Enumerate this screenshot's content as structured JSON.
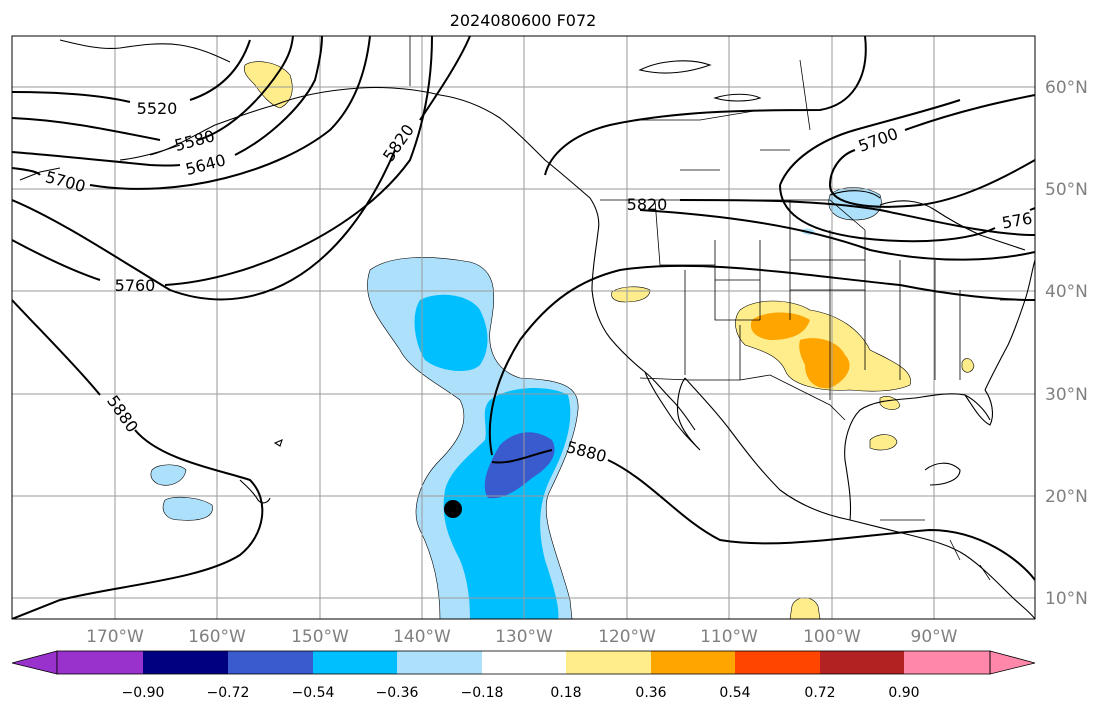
{
  "title": "2024080600 F072",
  "colors": {
    "lt_m090": "#9932CC",
    "m090_m072": "#000080",
    "m072_m054": "#3A5BCD",
    "m054_m036": "#00BFFF",
    "m036_m018": "#ADE0FA",
    "m018_018": "#FFFFFF",
    "p018_p036": "#FFEC8B",
    "p036_p054": "#FFA500",
    "p054_p072": "#FF4500",
    "p072_p090": "#B22222",
    "gt_p090": "#FF88AA"
  },
  "lon_labels": [
    "170°W",
    "160°W",
    "150°W",
    "140°W",
    "130°W",
    "120°W",
    "110°W",
    "100°W",
    "90°W"
  ],
  "lat_labels": [
    "60°N",
    "50°N",
    "40°N",
    "30°N",
    "20°N",
    "10°N"
  ],
  "colorbar": {
    "ticks": [
      "−0.90",
      "−0.72",
      "−0.54",
      "−0.36",
      "−0.18",
      "0.18",
      "0.36",
      "0.54",
      "0.72",
      "0.90"
    ]
  },
  "contour_labels": [
    "5520",
    "5580",
    "5640",
    "5700",
    "5760",
    "5820",
    "5880",
    "5820",
    "5700",
    "576",
    "5880"
  ],
  "marker": "center-dot"
}
